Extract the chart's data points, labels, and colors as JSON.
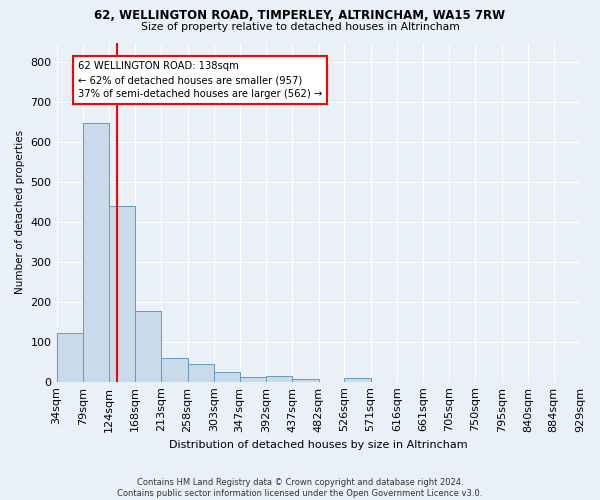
{
  "title1": "62, WELLINGTON ROAD, TIMPERLEY, ALTRINCHAM, WA15 7RW",
  "title2": "Size of property relative to detached houses in Altrincham",
  "xlabel": "Distribution of detached houses by size in Altrincham",
  "ylabel": "Number of detached properties",
  "footnote": "Contains HM Land Registry data © Crown copyright and database right 2024.\nContains public sector information licensed under the Open Government Licence v3.0.",
  "bar_labels": [
    "34sqm",
    "79sqm",
    "124sqm",
    "168sqm",
    "213sqm",
    "258sqm",
    "303sqm",
    "347sqm",
    "392sqm",
    "437sqm",
    "482sqm",
    "526sqm",
    "571sqm",
    "616sqm",
    "661sqm",
    "705sqm",
    "750sqm",
    "795sqm",
    "840sqm",
    "884sqm",
    "929sqm"
  ],
  "bin_heights": [
    122,
    648,
    440,
    178,
    60,
    44,
    25,
    11,
    14,
    7,
    0,
    8,
    0,
    0,
    0,
    0,
    0,
    0,
    0,
    0
  ],
  "bar_color": "#c9daea",
  "bar_edge_color": "#6699bb",
  "property_sqm": 138,
  "property_line_label": "62 WELLINGTON ROAD: 138sqm",
  "annotation_line1": "← 62% of detached houses are smaller (957)",
  "annotation_line2": "37% of semi-detached houses are larger (562) →",
  "annotation_box_color": "white",
  "annotation_box_edge": "red",
  "line_color": "red",
  "ylim_max": 850,
  "background_color": "#eaf0f8",
  "grid_color": "white"
}
